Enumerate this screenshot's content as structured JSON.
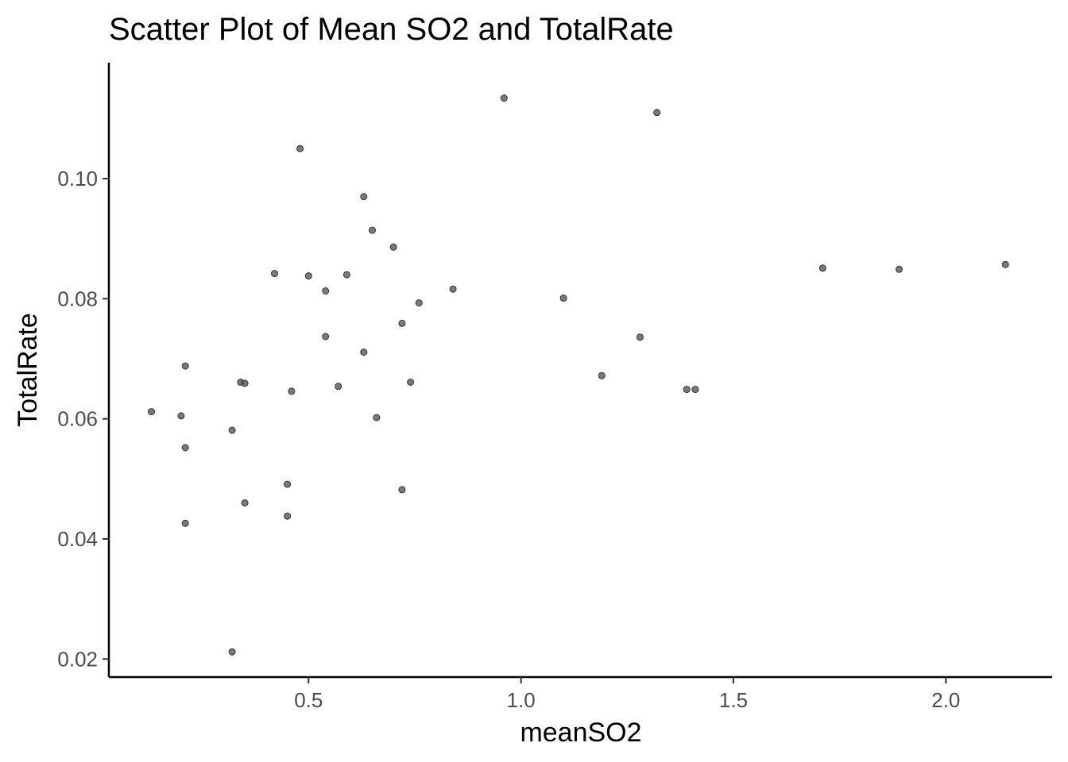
{
  "chart_data": {
    "type": "scatter",
    "title": "Scatter Plot of Mean SO2 and TotalRate",
    "xlabel": "meanSO2",
    "ylabel": "TotalRate",
    "xlim": [
      0.03,
      2.25
    ],
    "ylim": [
      0.017,
      0.1193
    ],
    "x_ticks": [
      {
        "value": 0.5,
        "label": "0.5"
      },
      {
        "value": 1.0,
        "label": "1.0"
      },
      {
        "value": 1.5,
        "label": "1.5"
      },
      {
        "value": 2.0,
        "label": "2.0"
      }
    ],
    "y_ticks": [
      {
        "value": 0.02,
        "label": "0.02"
      },
      {
        "value": 0.04,
        "label": "0.04"
      },
      {
        "value": 0.06,
        "label": "0.06"
      },
      {
        "value": 0.08,
        "label": "0.08"
      },
      {
        "value": 0.1,
        "label": "0.10"
      }
    ],
    "grid": false,
    "legend": "none",
    "point_color": "#4d4d4d",
    "point_outline": "#333333",
    "points": [
      {
        "x": 0.96,
        "y": 0.1134
      },
      {
        "x": 1.32,
        "y": 0.111
      },
      {
        "x": 0.48,
        "y": 0.105
      },
      {
        "x": 0.63,
        "y": 0.097
      },
      {
        "x": 0.65,
        "y": 0.0914
      },
      {
        "x": 0.7,
        "y": 0.0886
      },
      {
        "x": 0.42,
        "y": 0.0842
      },
      {
        "x": 0.5,
        "y": 0.0838
      },
      {
        "x": 0.59,
        "y": 0.084
      },
      {
        "x": 1.71,
        "y": 0.0851
      },
      {
        "x": 1.89,
        "y": 0.0849
      },
      {
        "x": 2.14,
        "y": 0.0857
      },
      {
        "x": 0.84,
        "y": 0.0816
      },
      {
        "x": 0.54,
        "y": 0.0813
      },
      {
        "x": 1.1,
        "y": 0.0801
      },
      {
        "x": 0.76,
        "y": 0.0793
      },
      {
        "x": 0.72,
        "y": 0.0759
      },
      {
        "x": 0.54,
        "y": 0.0737
      },
      {
        "x": 1.28,
        "y": 0.0736
      },
      {
        "x": 0.63,
        "y": 0.0711
      },
      {
        "x": 0.21,
        "y": 0.0688
      },
      {
        "x": 1.19,
        "y": 0.0672
      },
      {
        "x": 0.34,
        "y": 0.0661
      },
      {
        "x": 0.35,
        "y": 0.0659
      },
      {
        "x": 0.74,
        "y": 0.0661
      },
      {
        "x": 0.57,
        "y": 0.0654
      },
      {
        "x": 0.46,
        "y": 0.0646
      },
      {
        "x": 1.39,
        "y": 0.0649
      },
      {
        "x": 1.41,
        "y": 0.0649
      },
      {
        "x": 0.13,
        "y": 0.0612
      },
      {
        "x": 0.2,
        "y": 0.0605
      },
      {
        "x": 0.66,
        "y": 0.0602
      },
      {
        "x": 0.32,
        "y": 0.0581
      },
      {
        "x": 0.21,
        "y": 0.0552
      },
      {
        "x": 0.45,
        "y": 0.0491
      },
      {
        "x": 0.72,
        "y": 0.0482
      },
      {
        "x": 0.35,
        "y": 0.046
      },
      {
        "x": 0.45,
        "y": 0.0438
      },
      {
        "x": 0.21,
        "y": 0.0426
      },
      {
        "x": 0.32,
        "y": 0.0212
      }
    ]
  }
}
